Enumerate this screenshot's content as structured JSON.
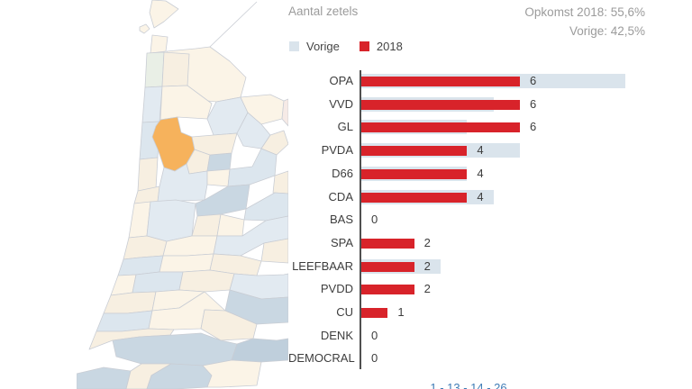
{
  "header": {
    "title": "Aantal zetels",
    "turnout_2018": "Opkomst 2018: 55,6%",
    "turnout_previous": "Vorige: 42,5%"
  },
  "legend": [
    {
      "label": "Vorige",
      "color": "#dae4ec"
    },
    {
      "label": "2018",
      "color": "#d8232a"
    }
  ],
  "chart_data": {
    "type": "bar",
    "orientation": "horizontal",
    "title": "Aantal zetels",
    "categories": [
      "OPA",
      "VVD",
      "GL",
      "PVDA",
      "D66",
      "CDA",
      "BAS",
      "SPA",
      "LEEFBAAR",
      "PVDD",
      "CU",
      "DENK",
      "DEMOCRAL"
    ],
    "series": [
      {
        "name": "Vorige",
        "color": "#dae4ec",
        "values": [
          10,
          5,
          4,
          6,
          4,
          5,
          0,
          0,
          3,
          0,
          0,
          0,
          0
        ]
      },
      {
        "name": "2018",
        "color": "#d8232a",
        "values": [
          6,
          6,
          6,
          4,
          4,
          4,
          0,
          2,
          2,
          2,
          1,
          0,
          0
        ]
      }
    ],
    "value_labels": [
      "6",
      "6",
      "6",
      "4",
      "4",
      "4",
      "0",
      "2",
      "2",
      "2",
      "1",
      "0",
      "0"
    ],
    "xlim": [
      0,
      15
    ],
    "grid": false,
    "legend_position": "top"
  },
  "map": {
    "description": "choropleth of municipalities with one selected",
    "selected_municipality_color": "#f6b25c"
  },
  "footer": {
    "text": "1 - 13 - 14 - 26"
  },
  "colors": {
    "bar_2018": "#d8232a",
    "bar_vorige": "#dae4ec",
    "map_highlight": "#f6b25c",
    "map_cream": "#fbf4e7",
    "map_cream2": "#f7efe1",
    "map_pale_blue": "#e2eaf1",
    "map_pale_blue2": "#dce6ee",
    "map_mid_blue": "#c9d7e2",
    "map_dark_blue": "#bfcfdc",
    "map_pale_green": "#e9efe6",
    "map_pale_pink": "#f6eae6",
    "map_border": "#c9cdd4",
    "axis": "#4f4f4f",
    "text_muted": "#9b9b9b",
    "text_dark": "#3d3d3d",
    "footer_link": "#3f7cb6"
  }
}
